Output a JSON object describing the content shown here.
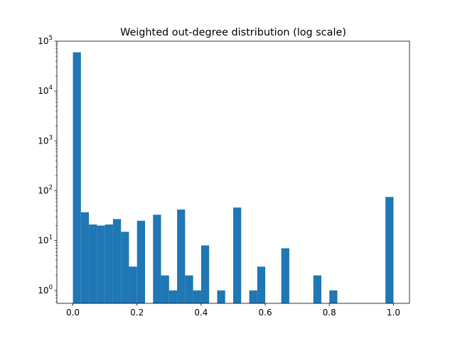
{
  "chart_data": {
    "type": "bar",
    "title": "Weighted out-degree distribution (log scale)",
    "xlabel": "",
    "ylabel": "",
    "yscale": "log",
    "xlim": [
      -0.05,
      1.05
    ],
    "ylim": [
      0.55,
      100000
    ],
    "bins": {
      "start": 0.0,
      "width": 0.025,
      "counts": [
        60000,
        37,
        21,
        20,
        21,
        27,
        15,
        3,
        25,
        0,
        33,
        2,
        1,
        42,
        2,
        1,
        8,
        0,
        1,
        0,
        46,
        0,
        1,
        3,
        0,
        0,
        7,
        0,
        0,
        0,
        2,
        0,
        1,
        0,
        0,
        0,
        0,
        0,
        0,
        75
      ]
    },
    "xticks": [
      {
        "value": 0.0,
        "label": "0.0"
      },
      {
        "value": 0.2,
        "label": "0.2"
      },
      {
        "value": 0.4,
        "label": "0.4"
      },
      {
        "value": 0.6,
        "label": "0.6"
      },
      {
        "value": 0.8,
        "label": "0.8"
      },
      {
        "value": 1.0,
        "label": "1.0"
      }
    ],
    "yticks": [
      {
        "exp": 0,
        "base": "10",
        "sup": "0"
      },
      {
        "exp": 1,
        "base": "10",
        "sup": "1"
      },
      {
        "exp": 2,
        "base": "10",
        "sup": "2"
      },
      {
        "exp": 3,
        "base": "10",
        "sup": "3"
      },
      {
        "exp": 4,
        "base": "10",
        "sup": "4"
      },
      {
        "exp": 5,
        "base": "10",
        "sup": "5"
      }
    ],
    "bar_color": "#1f77b4",
    "grid": false,
    "legend": "none"
  }
}
